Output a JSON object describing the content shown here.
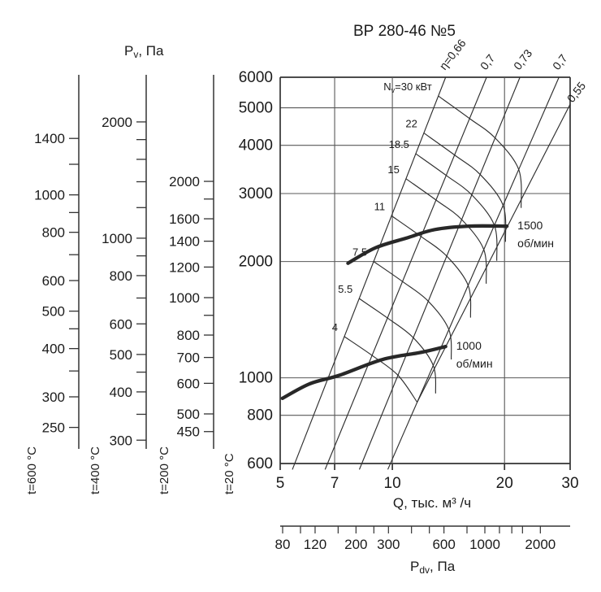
{
  "chart_data": {
    "type": "line",
    "title": "ВР 280-46 №5",
    "x_axis": {
      "label": "Q, тыс. м³ /ч",
      "scale": "log",
      "range": [
        5,
        30
      ],
      "ticks": [
        5,
        7,
        10,
        20,
        30
      ]
    },
    "y_axis": {
      "label": {
        "base": "P",
        "sub": "v",
        "suffix": ", Па"
      },
      "scale": "log",
      "range": [
        600,
        6000
      ],
      "ticks": [
        600,
        800,
        1000,
        2000,
        3000,
        4000,
        5000,
        6000
      ],
      "gridlines": true
    },
    "temperature_axes": [
      {
        "label": "t=600 °C",
        "density_ratio": 0.336,
        "ticks": [
          1400,
          1200,
          1000,
          900,
          800,
          700,
          600,
          500,
          450,
          400,
          350,
          300,
          250
        ],
        "labeled_ticks": [
          1400,
          1000,
          800,
          600,
          500,
          400,
          300,
          250
        ]
      },
      {
        "label": "t=400 °C",
        "density_ratio": 0.435,
        "ticks": [
          2000,
          1800,
          1600,
          1400,
          1200,
          1000,
          900,
          800,
          700,
          600,
          500,
          450,
          400,
          350,
          300
        ],
        "labeled_ticks": [
          2000,
          1000,
          800,
          600,
          500,
          400,
          300
        ]
      },
      {
        "label": "t=200 °C",
        "density_ratio": 0.62,
        "ticks": [
          2000,
          1800,
          1600,
          1400,
          1200,
          1000,
          900,
          800,
          700,
          600,
          500,
          450
        ],
        "labeled_ticks": [
          2000,
          1600,
          1400,
          1200,
          1000,
          800,
          700,
          600,
          500,
          450
        ]
      },
      {
        "label": "t=20 °C",
        "density_ratio": 1
      }
    ],
    "efficiency_lines": [
      {
        "label": "η=0,66",
        "eta": 0.66,
        "q_at_600": 5.47,
        "q_at_6000": 13.9
      },
      {
        "label": "0,7",
        "eta": 0.7,
        "q_at_600": 6.7,
        "q_at_6000": 17.9
      },
      {
        "label": "0,73",
        "eta": 0.73,
        "q_at_600": 8.28,
        "q_at_6000": 22.0
      },
      {
        "label": "0,7",
        "eta": 0.7,
        "q_at_600": 9.88,
        "q_at_6000": 28.0
      },
      {
        "label": "0,55",
        "eta": 0.55,
        "q_at_600": 9.56,
        "q_at_6000": 32.7,
        "clipped_to_power_grid": true
      }
    ],
    "power_curves": {
      "values_kw": [
        30,
        22,
        18.5,
        15,
        11,
        7.5,
        5.5,
        4
      ],
      "labels": [
        "Nv=30 кВт",
        "22",
        "18.5",
        "15",
        "11",
        "7.5",
        "5.5",
        "4"
      ],
      "first_label": {
        "base": "N",
        "sub": "v",
        "suffix": "=30 кВт"
      }
    },
    "speed_curves": [
      {
        "rpm": 1500,
        "label_lines": [
          "1500",
          "об/мин"
        ],
        "q": [
          7.6,
          9.0,
          10.9,
          13.0,
          16.0,
          20.3
        ],
        "p": [
          1980,
          2170,
          2300,
          2420,
          2470,
          2470
        ]
      },
      {
        "rpm": 1000,
        "label_lines": [
          "1000",
          "об/мин"
        ],
        "q": [
          5.07,
          6.0,
          7.2,
          9.4,
          12.0,
          13.9
        ],
        "p": [
          885,
          965,
          1015,
          1115,
          1165,
          1205
        ]
      }
    ],
    "pdv_axis": {
      "label": {
        "base": "P",
        "sub": "dv",
        "suffix": ", Па"
      },
      "scale": "log",
      "range": [
        80,
        2800
      ],
      "ticks": [
        80,
        100,
        120,
        160,
        200,
        250,
        300,
        400,
        500,
        600,
        800,
        1000,
        1200,
        1400,
        1600,
        2000
      ],
      "labeled_ticks": [
        80,
        120,
        200,
        300,
        600,
        1000,
        2000
      ]
    }
  }
}
